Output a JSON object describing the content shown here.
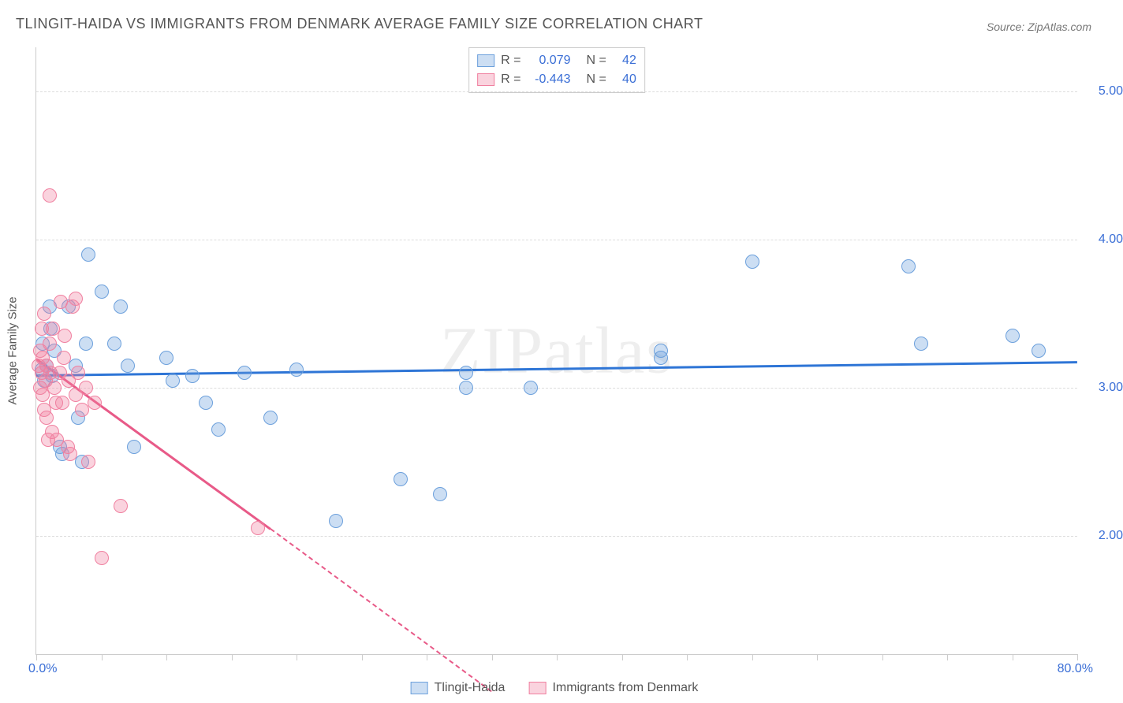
{
  "title": "TLINGIT-HAIDA VS IMMIGRANTS FROM DENMARK AVERAGE FAMILY SIZE CORRELATION CHART",
  "source": "Source: ZipAtlas.com",
  "watermark": "ZIPatlas",
  "yaxis_label": "Average Family Size",
  "xaxis": {
    "min": 0,
    "max": 80,
    "start_label": "0.0%",
    "end_label": "80.0%",
    "ticks": [
      0,
      5,
      10,
      15,
      20,
      25,
      30,
      35,
      40,
      45,
      50,
      55,
      60,
      65,
      70,
      75,
      80
    ]
  },
  "yaxis": {
    "min": 1.2,
    "max": 5.3,
    "ticks": [
      2,
      3,
      4,
      5
    ],
    "tick_labels": [
      "2.00",
      "3.00",
      "4.00",
      "5.00"
    ]
  },
  "background_color": "#ffffff",
  "grid_color": "#dddddd",
  "axis_color": "#cccccc",
  "tick_label_color": "#3b6fd6",
  "title_color": "#555555",
  "series": [
    {
      "name": "Tlingit-Haida",
      "fill": "rgba(108,160,220,0.35)",
      "stroke": "#6ca0dc",
      "line_color": "#2e75d6",
      "r": "0.079",
      "n": "42",
      "trend": {
        "x1": 0,
        "y1": 3.09,
        "x2": 80,
        "y2": 3.18,
        "dashed_from_x": 80
      },
      "points": [
        [
          0.4,
          3.12
        ],
        [
          0.5,
          3.3
        ],
        [
          0.6,
          3.05
        ],
        [
          0.8,
          3.15
        ],
        [
          1.0,
          3.55
        ],
        [
          1.1,
          3.4
        ],
        [
          1.2,
          3.08
        ],
        [
          1.4,
          3.25
        ],
        [
          1.8,
          2.6
        ],
        [
          2.0,
          2.55
        ],
        [
          2.5,
          3.55
        ],
        [
          3.0,
          3.15
        ],
        [
          3.2,
          2.8
        ],
        [
          3.5,
          2.5
        ],
        [
          3.8,
          3.3
        ],
        [
          4.0,
          3.9
        ],
        [
          5.0,
          3.65
        ],
        [
          6.0,
          3.3
        ],
        [
          6.5,
          3.55
        ],
        [
          7.0,
          3.15
        ],
        [
          7.5,
          2.6
        ],
        [
          10.0,
          3.2
        ],
        [
          10.5,
          3.05
        ],
        [
          12.0,
          3.08
        ],
        [
          13.0,
          2.9
        ],
        [
          14.0,
          2.72
        ],
        [
          16.0,
          3.1
        ],
        [
          18.0,
          2.8
        ],
        [
          20.0,
          3.12
        ],
        [
          23.0,
          2.1
        ],
        [
          28.0,
          2.38
        ],
        [
          31.0,
          2.28
        ],
        [
          33.0,
          3.0
        ],
        [
          33.0,
          3.1
        ],
        [
          38.0,
          3.0
        ],
        [
          48.0,
          3.2
        ],
        [
          48.0,
          3.25
        ],
        [
          55.0,
          3.85
        ],
        [
          67.0,
          3.82
        ],
        [
          68.0,
          3.3
        ],
        [
          75.0,
          3.35
        ],
        [
          77.0,
          3.25
        ]
      ]
    },
    {
      "name": "Immigrants from Denmark",
      "fill": "rgba(240,128,160,0.35)",
      "stroke": "#f080a0",
      "line_color": "#e85a88",
      "r": "-0.443",
      "n": "40",
      "trend": {
        "x1": 0,
        "y1": 3.2,
        "x2": 18,
        "y2": 2.05,
        "dashed_to_x": 35,
        "dashed_to_y": 0.95
      },
      "points": [
        [
          0.2,
          3.15
        ],
        [
          0.3,
          3.25
        ],
        [
          0.3,
          3.0
        ],
        [
          0.4,
          3.4
        ],
        [
          0.4,
          3.1
        ],
        [
          0.5,
          2.95
        ],
        [
          0.5,
          3.2
        ],
        [
          0.6,
          3.5
        ],
        [
          0.6,
          2.85
        ],
        [
          0.7,
          3.05
        ],
        [
          0.8,
          2.8
        ],
        [
          0.8,
          3.15
        ],
        [
          0.9,
          2.65
        ],
        [
          1.0,
          3.3
        ],
        [
          1.0,
          4.3
        ],
        [
          1.1,
          3.1
        ],
        [
          1.2,
          2.7
        ],
        [
          1.3,
          3.4
        ],
        [
          1.4,
          3.0
        ],
        [
          1.5,
          2.9
        ],
        [
          1.6,
          2.65
        ],
        [
          1.8,
          3.1
        ],
        [
          1.9,
          3.58
        ],
        [
          2.0,
          2.9
        ],
        [
          2.1,
          3.2
        ],
        [
          2.2,
          3.35
        ],
        [
          2.4,
          2.6
        ],
        [
          2.5,
          3.05
        ],
        [
          2.8,
          3.55
        ],
        [
          3.0,
          2.95
        ],
        [
          3.2,
          3.1
        ],
        [
          3.5,
          2.85
        ],
        [
          3.8,
          3.0
        ],
        [
          4.0,
          2.5
        ],
        [
          4.5,
          2.9
        ],
        [
          5.0,
          1.85
        ],
        [
          6.5,
          2.2
        ],
        [
          3.0,
          3.6
        ],
        [
          2.6,
          2.55
        ],
        [
          17.0,
          2.05
        ]
      ]
    }
  ],
  "bottom_legend": [
    {
      "label": "Tlingit-Haida",
      "fill": "rgba(108,160,220,0.35)",
      "stroke": "#6ca0dc"
    },
    {
      "label": "Immigrants from Denmark",
      "fill": "rgba(240,128,160,0.35)",
      "stroke": "#f080a0"
    }
  ]
}
